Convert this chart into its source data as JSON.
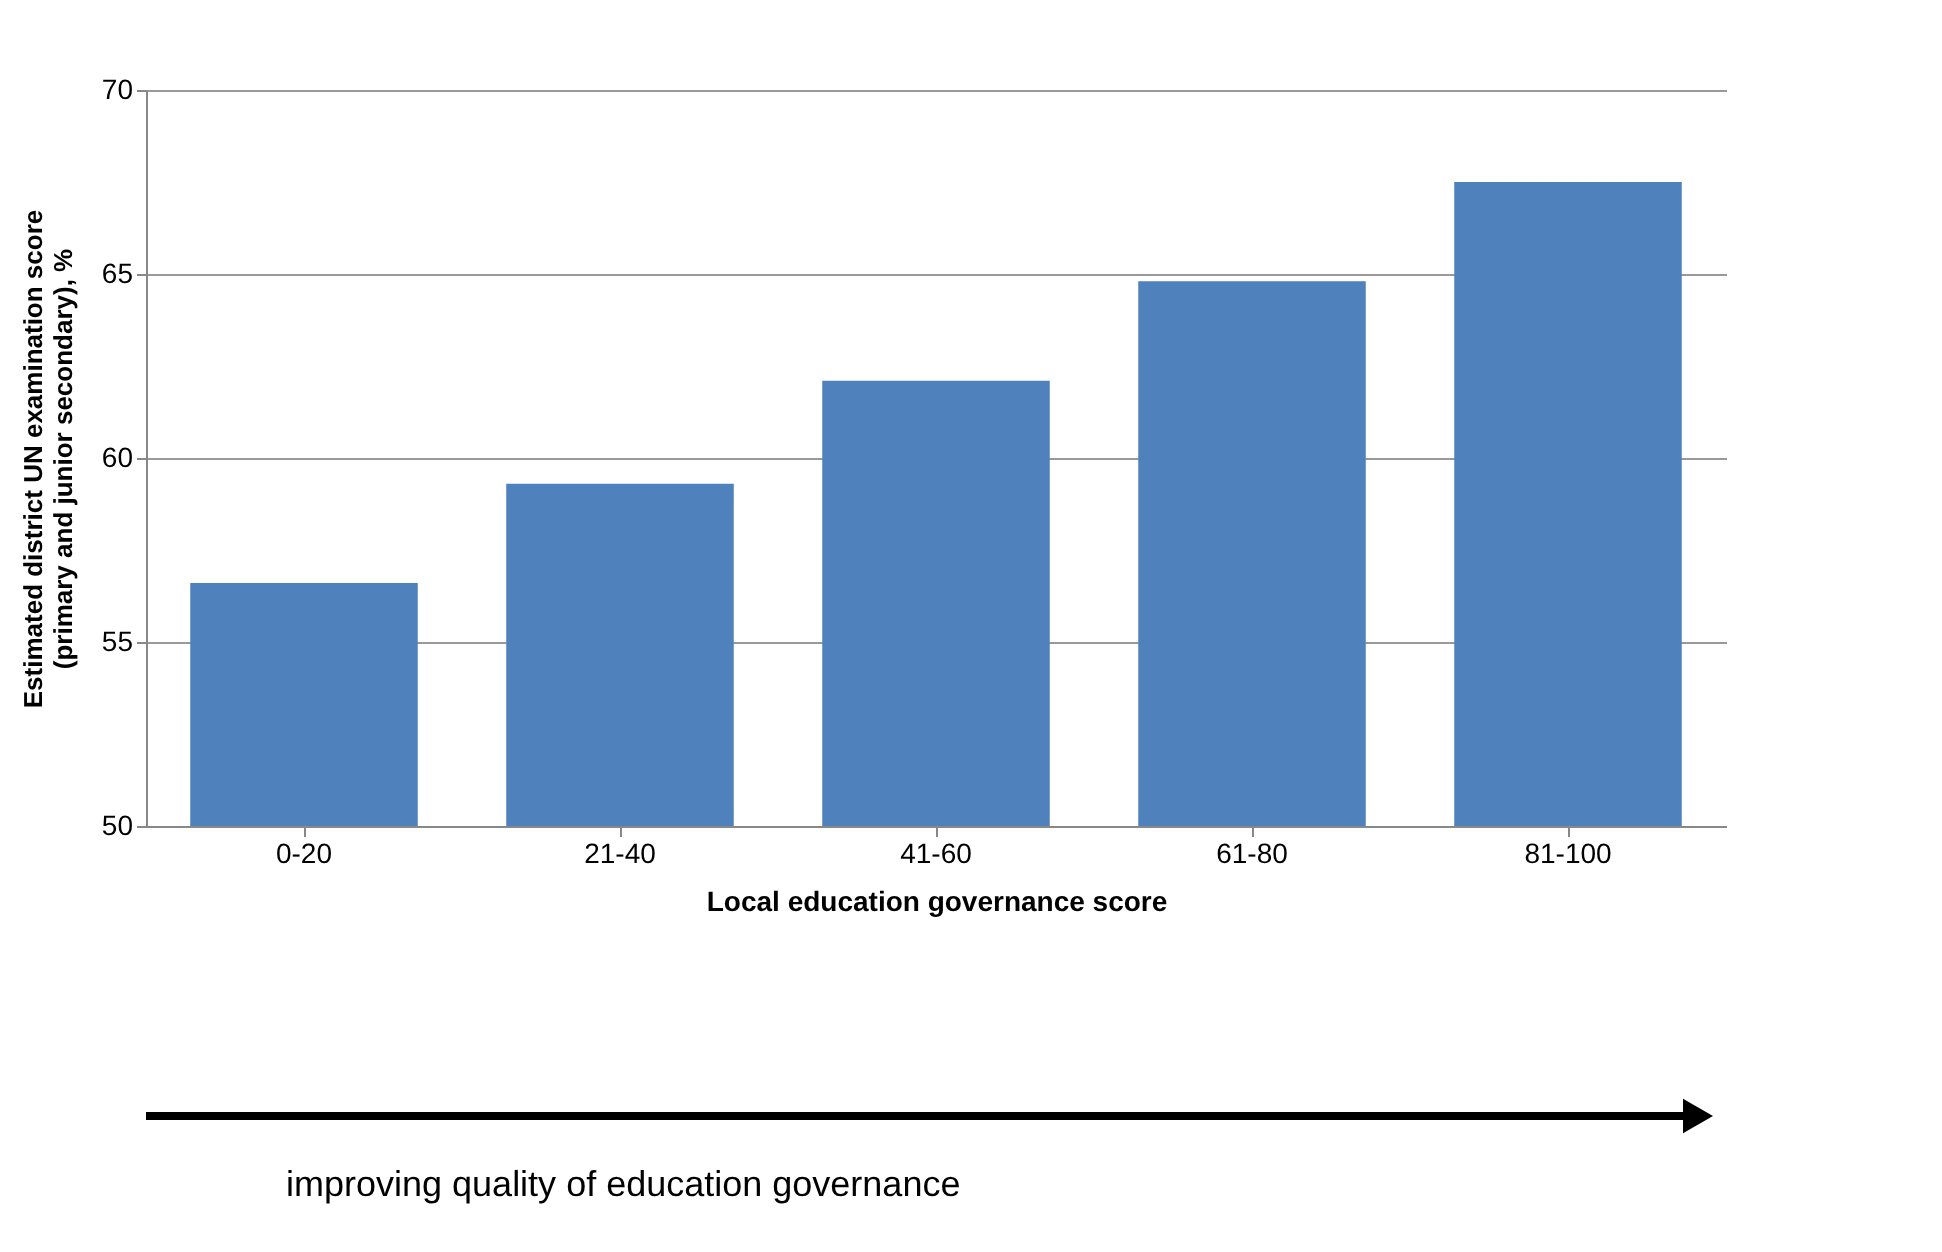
{
  "chart_data": {
    "type": "bar",
    "categories": [
      "0-20",
      "21-40",
      "41-60",
      "61-80",
      "81-100"
    ],
    "values": [
      56.6,
      59.3,
      62.1,
      64.8,
      67.5
    ],
    "color": "#4f81bd",
    "xlabel": "Local education governance score",
    "ylabel": "Estimated district UN examination  score (primary and junior secondary), %",
    "ylim": [
      50,
      70
    ],
    "yticks": [
      50,
      55,
      60,
      65,
      70
    ],
    "grid": "y",
    "annotations": [
      "improving quality of education governance"
    ]
  }
}
